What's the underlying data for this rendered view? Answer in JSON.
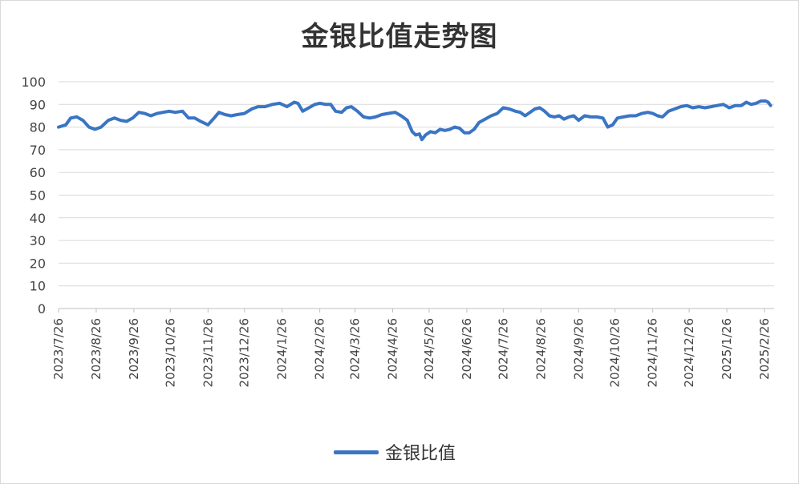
{
  "chart_data": {
    "type": "line",
    "title": "金银比值走势图",
    "xlabel": "",
    "ylabel": "",
    "ylim": [
      0,
      100
    ],
    "yticks": [
      0,
      10,
      20,
      30,
      40,
      50,
      60,
      70,
      80,
      90,
      100
    ],
    "grid": true,
    "legend_position": "bottom",
    "x_tick_labels": [
      "2023/7/26",
      "2023/8/26",
      "2023/9/26",
      "2023/10/26",
      "2023/11/26",
      "2023/12/26",
      "2024/1/26",
      "2024/2/26",
      "2024/3/26",
      "2024/4/26",
      "2024/5/26",
      "2024/6/26",
      "2024/7/26",
      "2024/8/26",
      "2024/9/26",
      "2024/10/26",
      "2024/11/26",
      "2024/12/26",
      "2025/1/26",
      "2025/2/26"
    ],
    "series": [
      {
        "name": "金银比值",
        "color": "#3a75c4",
        "points": [
          [
            "2023-07-26",
            80
          ],
          [
            "2023-08-01",
            81
          ],
          [
            "2023-08-05",
            84
          ],
          [
            "2023-08-10",
            84.5
          ],
          [
            "2023-08-15",
            83
          ],
          [
            "2023-08-20",
            80
          ],
          [
            "2023-08-25",
            79
          ],
          [
            "2023-08-30",
            80
          ],
          [
            "2023-09-05",
            83
          ],
          [
            "2023-09-10",
            84
          ],
          [
            "2023-09-15",
            83
          ],
          [
            "2023-09-20",
            82.5
          ],
          [
            "2023-09-25",
            84
          ],
          [
            "2023-09-30",
            86.5
          ],
          [
            "2023-10-05",
            86
          ],
          [
            "2023-10-10",
            85
          ],
          [
            "2023-10-15",
            86
          ],
          [
            "2023-10-20",
            86.5
          ],
          [
            "2023-10-25",
            87
          ],
          [
            "2023-10-30",
            86.5
          ],
          [
            "2023-11-05",
            87
          ],
          [
            "2023-11-10",
            84
          ],
          [
            "2023-11-15",
            84
          ],
          [
            "2023-11-20",
            82.5
          ],
          [
            "2023-11-26",
            81
          ],
          [
            "2023-12-01",
            84
          ],
          [
            "2023-12-05",
            86.5
          ],
          [
            "2023-12-10",
            85.5
          ],
          [
            "2023-12-15",
            85
          ],
          [
            "2023-12-20",
            85.5
          ],
          [
            "2023-12-26",
            86
          ],
          [
            "2024-01-01",
            88
          ],
          [
            "2024-01-06",
            89
          ],
          [
            "2024-01-12",
            89
          ],
          [
            "2024-01-18",
            90
          ],
          [
            "2024-01-24",
            90.5
          ],
          [
            "2024-01-30",
            89
          ],
          [
            "2024-02-05",
            91
          ],
          [
            "2024-02-08",
            90.5
          ],
          [
            "2024-02-12",
            87
          ],
          [
            "2024-02-17",
            88.5
          ],
          [
            "2024-02-22",
            90
          ],
          [
            "2024-02-26",
            90.5
          ],
          [
            "2024-03-02",
            90
          ],
          [
            "2024-03-06",
            90
          ],
          [
            "2024-03-10",
            87
          ],
          [
            "2024-03-15",
            86.5
          ],
          [
            "2024-03-19",
            88.5
          ],
          [
            "2024-03-23",
            89
          ],
          [
            "2024-03-28",
            87
          ],
          [
            "2024-04-02",
            84.5
          ],
          [
            "2024-04-07",
            84
          ],
          [
            "2024-04-12",
            84.5
          ],
          [
            "2024-04-17",
            85.5
          ],
          [
            "2024-04-22",
            86
          ],
          [
            "2024-04-28",
            86.5
          ],
          [
            "2024-05-03",
            85
          ],
          [
            "2024-05-08",
            83
          ],
          [
            "2024-05-12",
            78
          ],
          [
            "2024-05-15",
            76.5
          ],
          [
            "2024-05-18",
            77
          ],
          [
            "2024-05-20",
            74.5
          ],
          [
            "2024-05-23",
            76.5
          ],
          [
            "2024-05-27",
            78
          ],
          [
            "2024-05-31",
            77.5
          ],
          [
            "2024-06-04",
            79
          ],
          [
            "2024-06-08",
            78.5
          ],
          [
            "2024-06-12",
            79
          ],
          [
            "2024-06-16",
            80
          ],
          [
            "2024-06-20",
            79.5
          ],
          [
            "2024-06-24",
            77.5
          ],
          [
            "2024-06-28",
            77.5
          ],
          [
            "2024-07-02",
            79
          ],
          [
            "2024-07-06",
            82
          ],
          [
            "2024-07-11",
            83.5
          ],
          [
            "2024-07-16",
            85
          ],
          [
            "2024-07-21",
            86
          ],
          [
            "2024-07-26",
            88.5
          ],
          [
            "2024-07-31",
            88
          ],
          [
            "2024-08-05",
            87
          ],
          [
            "2024-08-09",
            86.5
          ],
          [
            "2024-08-13",
            85
          ],
          [
            "2024-08-17",
            86.5
          ],
          [
            "2024-08-21",
            88
          ],
          [
            "2024-08-25",
            88.5
          ],
          [
            "2024-08-29",
            87
          ],
          [
            "2024-09-02",
            85
          ],
          [
            "2024-09-06",
            84.5
          ],
          [
            "2024-09-10",
            85
          ],
          [
            "2024-09-14",
            83.5
          ],
          [
            "2024-09-18",
            84.5
          ],
          [
            "2024-09-22",
            85
          ],
          [
            "2024-09-26",
            83
          ],
          [
            "2024-10-01",
            85
          ],
          [
            "2024-10-06",
            84.5
          ],
          [
            "2024-10-11",
            84.5
          ],
          [
            "2024-10-16",
            84
          ],
          [
            "2024-10-20",
            80
          ],
          [
            "2024-10-24",
            81
          ],
          [
            "2024-10-28",
            84
          ],
          [
            "2024-11-02",
            84.5
          ],
          [
            "2024-11-07",
            85
          ],
          [
            "2024-11-12",
            85
          ],
          [
            "2024-11-17",
            86
          ],
          [
            "2024-11-22",
            86.5
          ],
          [
            "2024-11-26",
            86
          ],
          [
            "2024-11-30",
            85
          ],
          [
            "2024-12-04",
            84.5
          ],
          [
            "2024-12-09",
            87
          ],
          [
            "2024-12-14",
            88
          ],
          [
            "2024-12-19",
            89
          ],
          [
            "2024-12-24",
            89.5
          ],
          [
            "2024-12-29",
            88.5
          ],
          [
            "2025-01-03",
            89
          ],
          [
            "2025-01-08",
            88.5
          ],
          [
            "2025-01-13",
            89
          ],
          [
            "2025-01-18",
            89.5
          ],
          [
            "2025-01-23",
            90
          ],
          [
            "2025-01-28",
            88.5
          ],
          [
            "2025-02-02",
            89.5
          ],
          [
            "2025-02-07",
            89.5
          ],
          [
            "2025-02-11",
            91
          ],
          [
            "2025-02-15",
            90
          ],
          [
            "2025-02-19",
            90.5
          ],
          [
            "2025-02-23",
            91.5
          ],
          [
            "2025-02-27",
            91.5
          ],
          [
            "2025-03-01",
            91
          ],
          [
            "2025-03-03",
            89.5
          ]
        ]
      }
    ]
  }
}
